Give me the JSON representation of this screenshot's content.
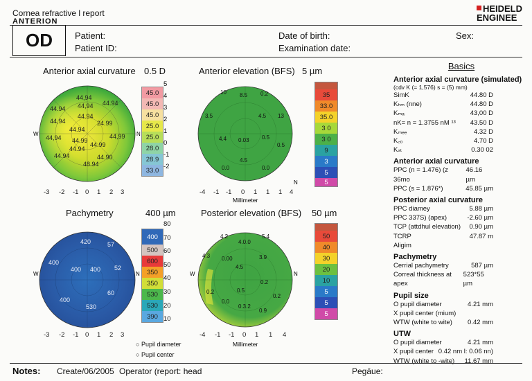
{
  "header": {
    "title": "Cornea refractive l report",
    "brand": "ANTERION",
    "logo_line1": "HEIDELD",
    "logo_line2": "ENGINEE",
    "eye": "OD"
  },
  "patient": {
    "patient_label": "Patient:",
    "patient_id_label": "Patient ID:",
    "dob_label": "Date of birth:",
    "exam_label": "Examination date:",
    "sex_label": "Sex:"
  },
  "maps": {
    "ant_axial": {
      "title": "Anterior axial curvature",
      "step": "0.5 D",
      "scale": [
        "45.0",
        "45.0",
        "45.0",
        "25.0",
        "25.0",
        "28.0",
        "28.9",
        "33.0"
      ],
      "ticks": [
        "5",
        "4",
        "3",
        "2",
        "1",
        "0",
        "-1",
        "-2"
      ],
      "values": [
        "44,94",
        "44.94",
        "44.94",
        "44,94",
        "44.94",
        "24.99",
        "44,94",
        "44.94",
        "44,94",
        "44.99",
        "44.99",
        "44,99",
        "44.90",
        "48.94",
        "44.94",
        "44.94"
      ],
      "x_ticks": [
        "-3",
        "-2",
        "-1",
        "0",
        "1",
        "2",
        "3"
      ]
    },
    "ant_elev": {
      "title": "Anterior elevation (BFS)",
      "step": "5 µm",
      "scale": [
        "35",
        "33.0",
        "35.0",
        "3 0",
        "3 0",
        "9",
        "3",
        "5",
        "5"
      ],
      "values": [
        "10",
        "8.5",
        "0.2",
        "3.5",
        "4.5",
        "13",
        "4.4",
        "0.03",
        "0.5",
        "0.5",
        "4.5",
        "0.0",
        "0.0"
      ],
      "x_ticks": [
        "-4",
        "-1",
        "-1",
        "0",
        "1",
        "1",
        "1",
        "4"
      ],
      "xlabel": "Millimeter"
    },
    "pachy": {
      "title": "Pachymetry",
      "step": "400 µm",
      "scale": [
        "400",
        "500",
        "600",
        "350",
        "350",
        "530",
        "530",
        "390"
      ],
      "ticks": [
        "80",
        "70",
        "60",
        "50",
        "40",
        "30",
        "20",
        "10"
      ],
      "values": [
        "420",
        "57",
        "400",
        "400",
        "400",
        "52",
        "60",
        "400",
        "530"
      ],
      "x_ticks": [
        "-3",
        "-2",
        "-1",
        "0",
        "1",
        "2",
        "3"
      ],
      "legend1": "Pupil diameter",
      "legend2": "Pupil center"
    },
    "post_elev": {
      "title": "Posterior elevation (BFS)",
      "step": "50 µm",
      "scale": [
        "50",
        "40",
        "30",
        "20",
        "10",
        "5",
        "5",
        "5"
      ],
      "values": [
        "4.2",
        "4.0.0",
        "5.4",
        "4.3",
        "0.00",
        "3.9",
        "4.5",
        "0.2",
        "0.5",
        "0.2",
        "0.0",
        "0.2",
        "0.3.2",
        "0.9"
      ],
      "x_ticks": [
        "-4",
        "-1",
        "-1",
        "0",
        "1",
        "1",
        "4"
      ],
      "xlabel": "Millimeter"
    }
  },
  "sidebar": {
    "heading": "Basics",
    "s1": {
      "title": "Anterior axial curvature (simulated)",
      "sub": "(cdv K (= 1,576) s = (5) mm)",
      "rows": [
        [
          "SimK",
          "44.80 D"
        ],
        [
          "Kₕₘ (nne)",
          "44.80 D"
        ],
        [
          "Kₘₐ",
          "43,00 D"
        ],
        [
          "nK= n = 1.3755 nM ¹³",
          "43.50 D"
        ],
        [
          "Kₘₑₑ",
          "4.32 D"
        ],
        [
          "K꜀ₒ",
          "4.70 D"
        ],
        [
          "Kₛₜ",
          "0.30 02"
        ]
      ]
    },
    "s2": {
      "title": "Anterior axial curvature",
      "rows": [
        [
          "PPC (n = 1.476) (z 36mo",
          "46.16 µm"
        ],
        [
          "PPC (s = 1.876*)",
          "45.85 µm"
        ]
      ]
    },
    "s3": {
      "title": "Posterior axial curvature",
      "rows": [
        [
          "PPC diamey",
          "5.88 µm"
        ],
        [
          "PPC 337S) (apex)",
          "-2.60 µm"
        ],
        [
          "TCP (attdhul elevation)",
          "0.90 µm"
        ],
        [
          "TCRP",
          "47.87 m"
        ],
        [
          "Aligim",
          ""
        ]
      ]
    },
    "s4": {
      "title": "Pachymetry",
      "rows": [
        [
          "Cerrial pachymetry",
          "587 µm"
        ],
        [
          "Correal thickness at apex",
          "523*55 µm"
        ]
      ]
    },
    "s5": {
      "title": "Pupil size",
      "rows": [
        [
          "O pupil diameter",
          "4.21 mm"
        ],
        [
          "X pupil center (mium)",
          ""
        ],
        [
          "WTW (white to wite)",
          "0.42 mm"
        ]
      ]
    },
    "s6": {
      "title": "UTW",
      "rows": [
        [
          "O pupil diameter",
          "4.21 mm"
        ],
        [
          "X pupil center",
          "0.42 nm l: 0.06 nn)"
        ],
        [
          "WTW (white to -wite)",
          "11.67 mm"
        ]
      ]
    }
  },
  "footer": {
    "notes": "Notes:",
    "created": "Create/06/2005",
    "operator": "Operator (report: head",
    "page": "Pegäue:"
  }
}
